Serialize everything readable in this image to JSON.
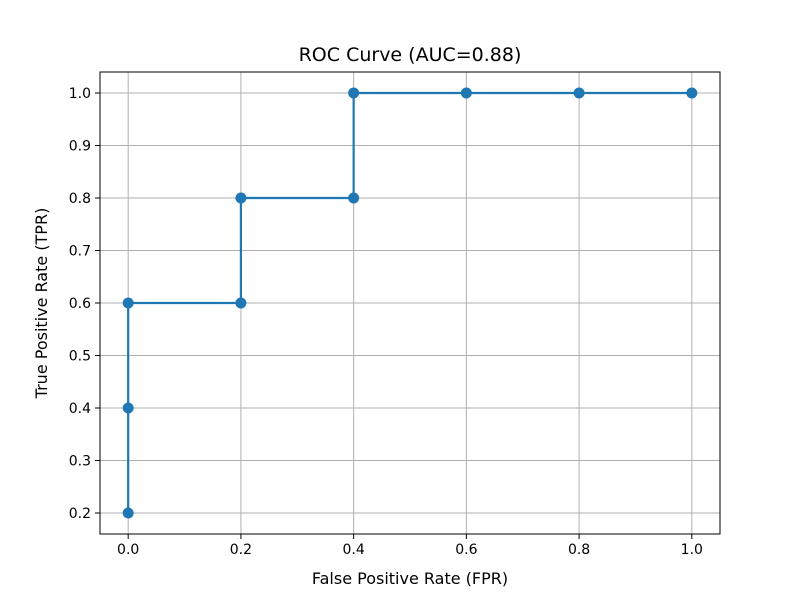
{
  "chart_data": {
    "type": "line",
    "title": "ROC Curve (AUC=0.88)",
    "xlabel": "False Positive Rate (FPR)",
    "ylabel": "True Positive Rate (TPR)",
    "xlim": [
      -0.05,
      1.05
    ],
    "ylim": [
      0.16,
      1.04
    ],
    "xticks": [
      0.0,
      0.2,
      0.4,
      0.6,
      0.8,
      1.0
    ],
    "xtick_labels": [
      "0.0",
      "0.2",
      "0.4",
      "0.6",
      "0.8",
      "1.0"
    ],
    "yticks": [
      0.2,
      0.3,
      0.4,
      0.5,
      0.6,
      0.7,
      0.8,
      0.9,
      1.0
    ],
    "ytick_labels": [
      "0.2",
      "0.3",
      "0.4",
      "0.5",
      "0.6",
      "0.7",
      "0.8",
      "0.9",
      "1.0"
    ],
    "grid": true,
    "series": [
      {
        "color": "#1f77b4",
        "marker": "circle",
        "points": [
          {
            "x": 0.0,
            "y": 0.2
          },
          {
            "x": 0.0,
            "y": 0.4
          },
          {
            "x": 0.0,
            "y": 0.6
          },
          {
            "x": 0.2,
            "y": 0.6
          },
          {
            "x": 0.2,
            "y": 0.8
          },
          {
            "x": 0.4,
            "y": 0.8
          },
          {
            "x": 0.4,
            "y": 1.0
          },
          {
            "x": 0.6,
            "y": 1.0
          },
          {
            "x": 0.8,
            "y": 1.0
          },
          {
            "x": 1.0,
            "y": 1.0
          }
        ]
      }
    ]
  }
}
